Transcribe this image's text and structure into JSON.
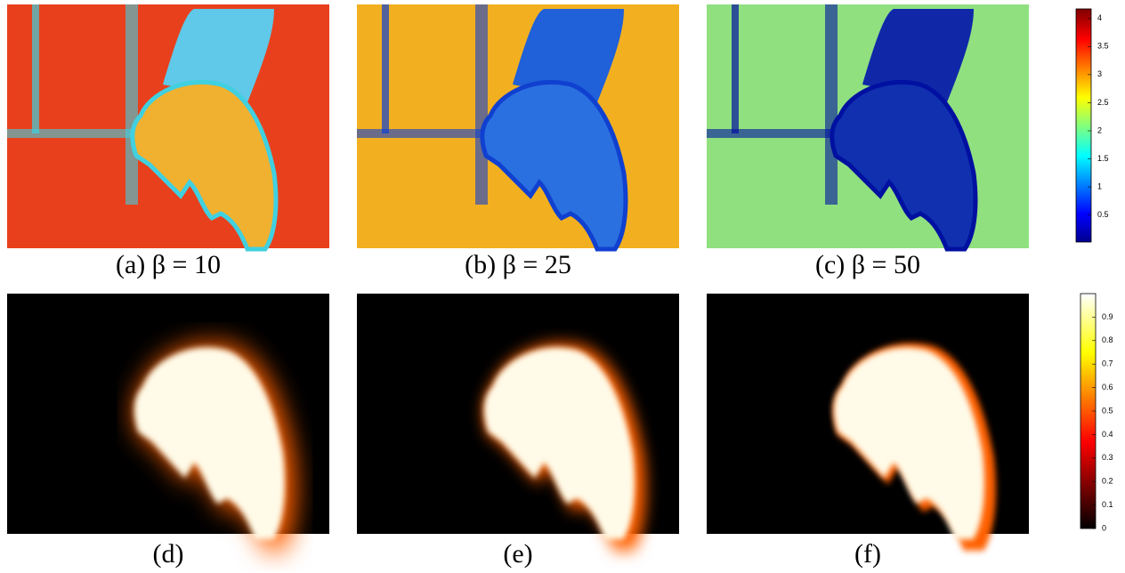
{
  "panels": [
    {
      "caption": "(a) β = 10"
    },
    {
      "caption": "(b) β = 25"
    },
    {
      "caption": "(c) β = 50"
    },
    {
      "caption": "(d)"
    },
    {
      "caption": "(e)"
    },
    {
      "caption": "(f)"
    }
  ],
  "colorbars": [
    {
      "lim": [
        0.02,
        4.17
      ],
      "ticks": [
        0.5,
        1,
        1.5,
        2,
        2.5,
        3,
        3.5,
        4
      ]
    },
    {
      "lim": [
        0,
        1
      ],
      "ticks": [
        0,
        0.1,
        0.2,
        0.3,
        0.4,
        0.5,
        0.6,
        0.7,
        0.8,
        0.9
      ]
    }
  ]
}
